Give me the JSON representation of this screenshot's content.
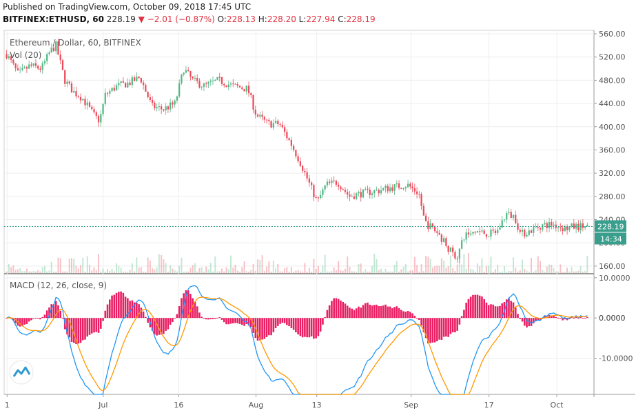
{
  "header": {
    "published": "Published on TradingView.com, October 09, 2018 17:45 UTC",
    "symbol": "BITFINEX:ETHUSD, 60",
    "last": "228.19",
    "change": "−2.01 (−0.87%)",
    "o_label": "O:",
    "o": "228.13",
    "h_label": "H:",
    "h": "228.20",
    "l_label": "L:",
    "l": "227.94",
    "c_label": "C:",
    "c": "228.19"
  },
  "colors": {
    "up": "#53b987",
    "down": "#eb4d5c",
    "price_tag": "#3a9e8c",
    "macd": "#2196f3",
    "signal": "#ff9800",
    "hist": "#e91e63"
  },
  "chart_data": [
    {
      "type": "candlestick",
      "title": "Ethereum / Dollar, 60, BITFINEX",
      "legend": [
        "Vol (20)"
      ],
      "x_ticks": [
        "1",
        "Jul",
        "16",
        "Aug",
        "13",
        "Sep",
        "17",
        "Oct"
      ],
      "y_ticks": [
        160,
        200,
        240,
        280,
        320,
        360,
        400,
        440,
        480,
        520,
        560
      ],
      "ylim": [
        148,
        566
      ],
      "last_price": 228.19,
      "last_label": "228.19",
      "countdown": "14:34",
      "close_path": [
        {
          "t": 0.0,
          "v": 525
        },
        {
          "t": 0.02,
          "v": 490
        },
        {
          "t": 0.04,
          "v": 505
        },
        {
          "t": 0.06,
          "v": 500
        },
        {
          "t": 0.075,
          "v": 530
        },
        {
          "t": 0.085,
          "v": 540
        },
        {
          "t": 0.1,
          "v": 480
        },
        {
          "t": 0.115,
          "v": 460
        },
        {
          "t": 0.13,
          "v": 450
        },
        {
          "t": 0.15,
          "v": 420
        },
        {
          "t": 0.16,
          "v": 410
        },
        {
          "t": 0.17,
          "v": 455
        },
        {
          "t": 0.19,
          "v": 470
        },
        {
          "t": 0.21,
          "v": 475
        },
        {
          "t": 0.23,
          "v": 485
        },
        {
          "t": 0.25,
          "v": 435
        },
        {
          "t": 0.27,
          "v": 430
        },
        {
          "t": 0.29,
          "v": 440
        },
        {
          "t": 0.305,
          "v": 500
        },
        {
          "t": 0.32,
          "v": 480
        },
        {
          "t": 0.34,
          "v": 470
        },
        {
          "t": 0.365,
          "v": 480
        },
        {
          "t": 0.39,
          "v": 470
        },
        {
          "t": 0.415,
          "v": 465
        },
        {
          "t": 0.43,
          "v": 420
        },
        {
          "t": 0.45,
          "v": 405
        },
        {
          "t": 0.47,
          "v": 405
        },
        {
          "t": 0.49,
          "v": 370
        },
        {
          "t": 0.505,
          "v": 340
        },
        {
          "t": 0.52,
          "v": 305
        },
        {
          "t": 0.535,
          "v": 270
        },
        {
          "t": 0.55,
          "v": 300
        },
        {
          "t": 0.57,
          "v": 305
        },
        {
          "t": 0.59,
          "v": 280
        },
        {
          "t": 0.61,
          "v": 285
        },
        {
          "t": 0.64,
          "v": 290
        },
        {
          "t": 0.66,
          "v": 295
        },
        {
          "t": 0.69,
          "v": 300
        },
        {
          "t": 0.71,
          "v": 285
        },
        {
          "t": 0.72,
          "v": 235
        },
        {
          "t": 0.74,
          "v": 220
        },
        {
          "t": 0.755,
          "v": 200
        },
        {
          "t": 0.765,
          "v": 185
        },
        {
          "t": 0.775,
          "v": 175
        },
        {
          "t": 0.79,
          "v": 215
        },
        {
          "t": 0.81,
          "v": 220
        },
        {
          "t": 0.83,
          "v": 215
        },
        {
          "t": 0.845,
          "v": 220
        },
        {
          "t": 0.86,
          "v": 250
        },
        {
          "t": 0.875,
          "v": 245
        },
        {
          "t": 0.885,
          "v": 215
        },
        {
          "t": 0.9,
          "v": 220
        },
        {
          "t": 0.92,
          "v": 230
        },
        {
          "t": 0.94,
          "v": 232
        },
        {
          "t": 0.96,
          "v": 225
        },
        {
          "t": 0.98,
          "v": 228
        },
        {
          "t": 1.0,
          "v": 228
        }
      ]
    },
    {
      "type": "line",
      "title": "MACD (12, 26, close, 9)",
      "y_ticks": [
        10,
        0,
        -10
      ],
      "y_tick_labels": [
        "10.0000",
        "0.0000",
        "-10.0000"
      ],
      "ylim": [
        -19,
        11
      ],
      "series": [
        {
          "name": "MACD",
          "role": "macd"
        },
        {
          "name": "Signal",
          "role": "signal"
        },
        {
          "name": "Histogram",
          "role": "hist"
        }
      ],
      "current_value_label": "0.0000"
    }
  ]
}
